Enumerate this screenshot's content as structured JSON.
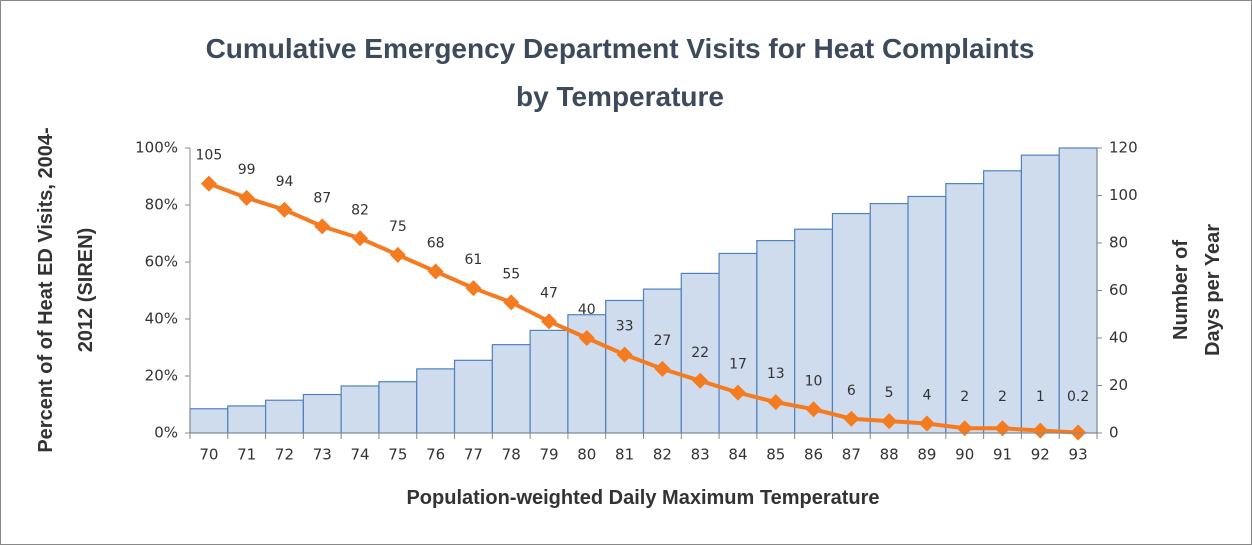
{
  "chart_data": {
    "type": "combo",
    "title": [
      "Cumulative Emergency Department Visits for Heat Complaints",
      "by Temperature"
    ],
    "y_label": [
      "Percent of of Heat ED Visits, 2004-",
      "2012 (SIREN)"
    ],
    "y2_label": [
      "Number of",
      "Days per Year"
    ],
    "x_label": "Population-weighted Daily Maximum Temperature",
    "categories": [
      "70",
      "71",
      "72",
      "73",
      "74",
      "75",
      "76",
      "77",
      "78",
      "79",
      "80",
      "81",
      "82",
      "83",
      "84",
      "85",
      "86",
      "87",
      "88",
      "89",
      "90",
      "91",
      "92",
      "93"
    ],
    "series": [
      {
        "type": "bar",
        "color": "#cfdcee",
        "values": [
          8.5,
          9.5,
          11.5,
          13.5,
          16.5,
          18,
          22.5,
          25.5,
          31,
          36,
          41.5,
          46.5,
          50.5,
          56,
          63,
          67.5,
          71.5,
          77,
          80.5,
          83,
          87.5,
          92,
          97.5,
          100
        ]
      },
      {
        "type": "line",
        "axis": "y2",
        "color": "#f47b20",
        "values": [
          105,
          99,
          94,
          87,
          82,
          75,
          68,
          61,
          55,
          47,
          40,
          33,
          27,
          22,
          17,
          13,
          10,
          6,
          5,
          4,
          2,
          2,
          1,
          0.2
        ]
      }
    ],
    "ylim": [
      0,
      100
    ],
    "yticks": [
      {
        "value": 0,
        "label": "0%"
      },
      {
        "value": 20,
        "label": "20%"
      },
      {
        "value": 40,
        "label": "40%"
      },
      {
        "value": 60,
        "label": "60%"
      },
      {
        "value": 80,
        "label": "80%"
      },
      {
        "value": 100,
        "label": "100%"
      }
    ],
    "y2lim": [
      0,
      120
    ],
    "y2ticks": [
      0,
      20,
      40,
      60,
      80,
      100,
      120
    ],
    "grid": false
  }
}
